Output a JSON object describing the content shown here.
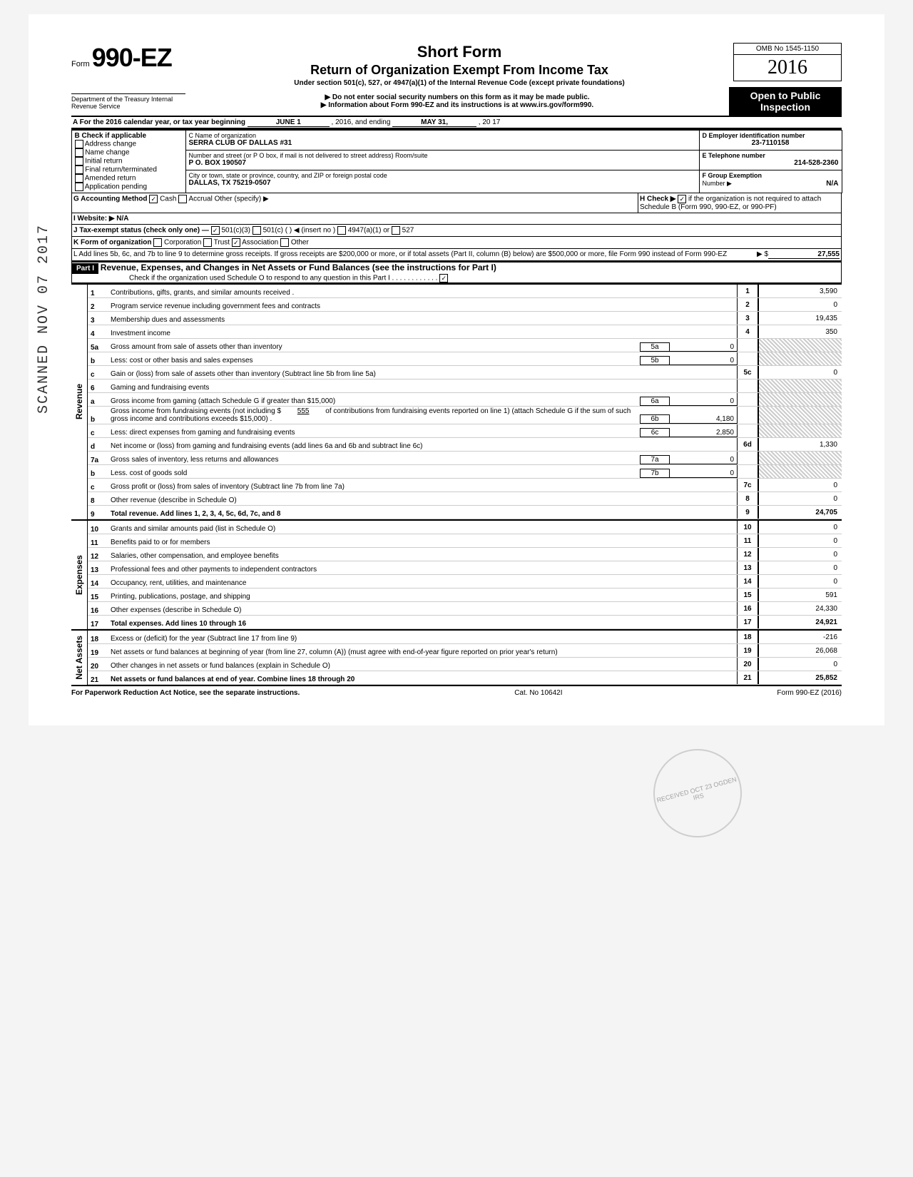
{
  "form": {
    "number_prefix": "Form",
    "number": "990-EZ",
    "omb": "OMB No 1545-1150",
    "year": "2016",
    "title1": "Short Form",
    "title2": "Return of Organization Exempt From Income Tax",
    "subtitle": "Under section 501(c), 527, or 4947(a)(1) of the Internal Revenue Code (except private foundations)",
    "warn": "Do not enter social security numbers on this form as it may be made public.",
    "info": "Information about Form 990-EZ and its instructions is at www.irs.gov/form990.",
    "open": "Open to Public Inspection",
    "dept": "Department of the Treasury\nInternal Revenue Service"
  },
  "period": {
    "line_a": "A  For the 2016 calendar year, or tax year beginning",
    "begin": "JUNE 1",
    "mid": ", 2016, and ending",
    "end": "MAY 31,",
    "end2": ", 20   17"
  },
  "box_b": {
    "header": "B  Check if applicable",
    "items": [
      "Address change",
      "Name change",
      "Initial return",
      "Final return/terminated",
      "Amended return",
      "Application pending"
    ]
  },
  "box_c": {
    "label": "C  Name of organization",
    "name": "SERRA CLUB OF DALLAS #31",
    "addr_label": "Number and street (or P O  box, if mail is not delivered to street address)           Room/suite",
    "addr": "P O. BOX 190507",
    "city_label": "City or town, state or province, country, and ZIP or foreign postal code",
    "city": "DALLAS, TX 75219-0507"
  },
  "box_d": {
    "label": "D Employer identification number",
    "value": "23-7110158"
  },
  "box_e": {
    "label": "E  Telephone number",
    "value": "214-528-2360"
  },
  "box_f": {
    "label": "F  Group Exemption",
    "label2": "Number ▶",
    "value": "N/A"
  },
  "line_g": {
    "label": "G  Accounting Method",
    "cash": "Cash",
    "accrual": "Accrual",
    "other": "Other (specify) ▶"
  },
  "line_h": {
    "label": "H  Check ▶",
    "text": "if the organization is not required to attach Schedule B (Form 990, 990-EZ, or 990-PF)"
  },
  "line_i": {
    "label": "I   Website: ▶",
    "value": "N/A"
  },
  "line_j": {
    "label": "J  Tax-exempt status (check only one) —",
    "o1": "501(c)(3)",
    "o2": "501(c) (",
    "o2b": ")  ◀ (insert no )",
    "o3": "4947(a)(1) or",
    "o4": "527"
  },
  "line_k": {
    "label": "K  Form of organization",
    "o1": "Corporation",
    "o2": "Trust",
    "o3": "Association",
    "o4": "Other"
  },
  "line_l": {
    "text": "L  Add lines 5b, 6c, and 7b to line 9 to determine gross receipts. If gross receipts are $200,000 or more, or if total assets (Part II, column (B) below) are $500,000 or more, file Form 990 instead of Form 990-EZ",
    "arrow": "▶  $",
    "value": "27,555"
  },
  "part1": {
    "label": "Part I",
    "title": "Revenue, Expenses, and Changes in Net Assets or Fund Balances (see the instructions for Part I)",
    "check": "Check if the organization used Schedule O to respond to any question in this Part I"
  },
  "sections": {
    "revenue": "Revenue",
    "expenses": "Expenses",
    "netassets": "Net Assets"
  },
  "lines": {
    "l1": {
      "n": "1",
      "d": "Contributions, gifts, grants, and similar amounts received .",
      "b": "1",
      "a": "3,590"
    },
    "l2": {
      "n": "2",
      "d": "Program service revenue including government fees and contracts",
      "b": "2",
      "a": "0"
    },
    "l3": {
      "n": "3",
      "d": "Membership dues and assessments",
      "b": "3",
      "a": "19,435"
    },
    "l4": {
      "n": "4",
      "d": "Investment income",
      "b": "4",
      "a": "350"
    },
    "l5a": {
      "n": "5a",
      "d": "Gross amount from sale of assets other than inventory",
      "ib": "5a",
      "ia": "0"
    },
    "l5b": {
      "n": "b",
      "d": "Less: cost or other basis and sales expenses",
      "ib": "5b",
      "ia": "0"
    },
    "l5c": {
      "n": "c",
      "d": "Gain or (loss) from sale of assets other than inventory (Subtract line 5b from line 5a)",
      "b": "5c",
      "a": "0"
    },
    "l6": {
      "n": "6",
      "d": "Gaming and fundraising events"
    },
    "l6a": {
      "n": "a",
      "d": "Gross income from gaming (attach Schedule G if greater than $15,000)",
      "ib": "6a",
      "ia": "0"
    },
    "l6b": {
      "n": "b",
      "d": "Gross income from fundraising events (not including  $",
      "d2": "of contributions from fundraising events reported on line 1) (attach Schedule G if the sum of such gross income and contributions exceeds $15,000) .",
      "mid": "555",
      "ib": "6b",
      "ia": "4,180"
    },
    "l6c": {
      "n": "c",
      "d": "Less: direct expenses from gaming and fundraising events",
      "ib": "6c",
      "ia": "2,850"
    },
    "l6d": {
      "n": "d",
      "d": "Net income or (loss) from gaming and fundraising events (add lines 6a and 6b and subtract line 6c)",
      "b": "6d",
      "a": "1,330"
    },
    "l7a": {
      "n": "7a",
      "d": "Gross sales of inventory, less returns and allowances",
      "ib": "7a",
      "ia": "0"
    },
    "l7b": {
      "n": "b",
      "d": "Less. cost of goods sold",
      "ib": "7b",
      "ia": "0"
    },
    "l7c": {
      "n": "c",
      "d": "Gross profit or (loss) from sales of inventory (Subtract line 7b from line 7a)",
      "b": "7c",
      "a": "0"
    },
    "l8": {
      "n": "8",
      "d": "Other revenue (describe in Schedule O)",
      "b": "8",
      "a": "0"
    },
    "l9": {
      "n": "9",
      "d": "Total revenue. Add lines 1, 2, 3, 4, 5c, 6d, 7c, and 8",
      "b": "9",
      "a": "24,705",
      "bold": true
    },
    "l10": {
      "n": "10",
      "d": "Grants and similar amounts paid (list in Schedule O)",
      "b": "10",
      "a": "0"
    },
    "l11": {
      "n": "11",
      "d": "Benefits paid to or for members",
      "b": "11",
      "a": "0"
    },
    "l12": {
      "n": "12",
      "d": "Salaries, other compensation, and employee benefits",
      "b": "12",
      "a": "0"
    },
    "l13": {
      "n": "13",
      "d": "Professional fees and other payments to independent contractors",
      "b": "13",
      "a": "0"
    },
    "l14": {
      "n": "14",
      "d": "Occupancy, rent, utilities, and maintenance",
      "b": "14",
      "a": "0"
    },
    "l15": {
      "n": "15",
      "d": "Printing, publications, postage, and shipping",
      "b": "15",
      "a": "591"
    },
    "l16": {
      "n": "16",
      "d": "Other expenses (describe in Schedule O)",
      "b": "16",
      "a": "24,330"
    },
    "l17": {
      "n": "17",
      "d": "Total expenses. Add lines 10 through 16",
      "b": "17",
      "a": "24,921",
      "bold": true
    },
    "l18": {
      "n": "18",
      "d": "Excess or (deficit) for the year (Subtract line 17 from line 9)",
      "b": "18",
      "a": "-216"
    },
    "l19": {
      "n": "19",
      "d": "Net assets or fund balances at beginning of year (from line 27, column (A)) (must agree with end-of-year figure reported on prior year's return)",
      "b": "19",
      "a": "26,068"
    },
    "l20": {
      "n": "20",
      "d": "Other changes in net assets or fund balances (explain in Schedule O)",
      "b": "20",
      "a": "0"
    },
    "l21": {
      "n": "21",
      "d": "Net assets or fund balances at end of year. Combine lines 18 through 20",
      "b": "21",
      "a": "25,852",
      "bold": true
    }
  },
  "footer": {
    "left": "For Paperwork Reduction Act Notice, see the separate instructions.",
    "mid": "Cat. No 10642I",
    "right": "Form 990-EZ (2016)"
  },
  "stamp": "SCANNED NOV 07 2017",
  "irs_stamp": "RECEIVED\nOCT 23\nOGDEN IRS"
}
